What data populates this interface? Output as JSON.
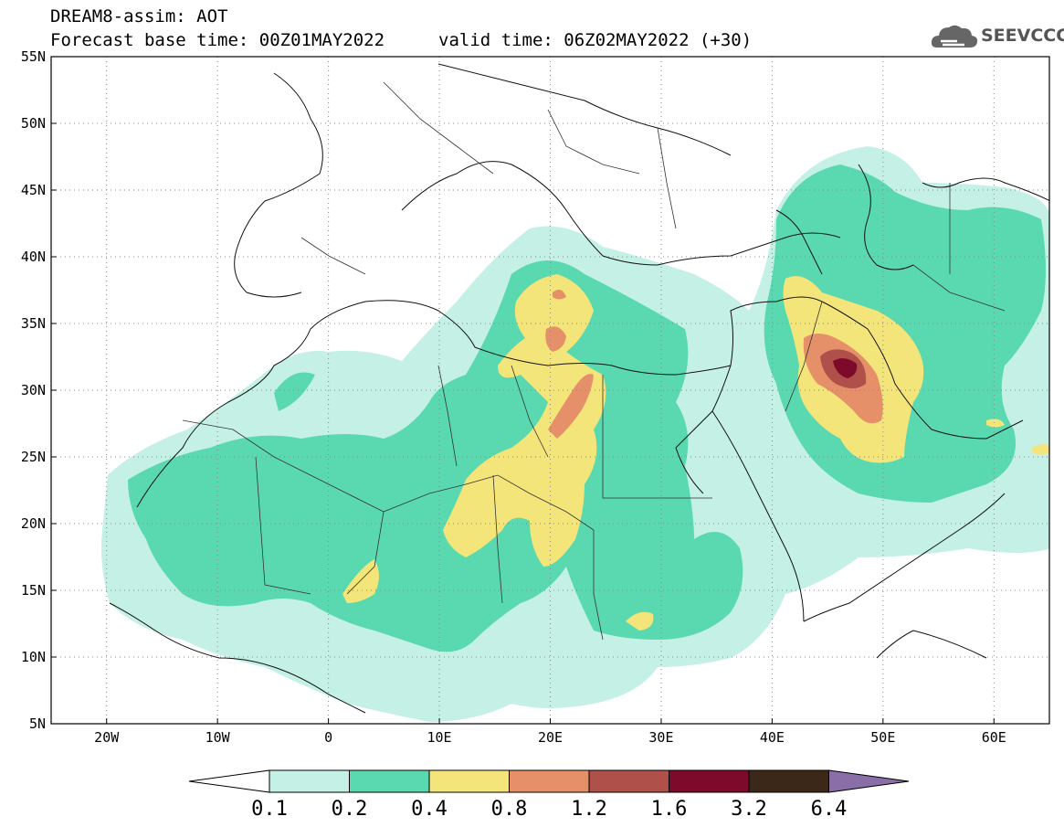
{
  "title": {
    "line1": "DREAM8-assim: AOT",
    "line2": "Forecast base time: 00Z01MAY2022",
    "valid": "valid time: 06Z02MAY2022 (+30)"
  },
  "logo": {
    "text": "SEEVCCC",
    "icon": "cloud-icon"
  },
  "map": {
    "lon_range": [
      -25,
      65
    ],
    "lat_range": [
      5,
      55
    ],
    "x_ticks": [
      {
        "lon": -20,
        "label": "20W"
      },
      {
        "lon": -10,
        "label": "10W"
      },
      {
        "lon": 0,
        "label": "0"
      },
      {
        "lon": 10,
        "label": "10E"
      },
      {
        "lon": 20,
        "label": "20E"
      },
      {
        "lon": 30,
        "label": "30E"
      },
      {
        "lon": 40,
        "label": "40E"
      },
      {
        "lon": 50,
        "label": "50E"
      },
      {
        "lon": 60,
        "label": "60E"
      }
    ],
    "y_ticks": [
      {
        "lat": 55,
        "label": "55N"
      },
      {
        "lat": 50,
        "label": "50N"
      },
      {
        "lat": 45,
        "label": "45N"
      },
      {
        "lat": 40,
        "label": "40N"
      },
      {
        "lat": 35,
        "label": "35N"
      },
      {
        "lat": 30,
        "label": "30N"
      },
      {
        "lat": 25,
        "label": "25N"
      },
      {
        "lat": 20,
        "label": "20N"
      },
      {
        "lat": 15,
        "label": "15N"
      },
      {
        "lat": 10,
        "label": "10N"
      },
      {
        "lat": 5,
        "label": "5N"
      }
    ],
    "grid": "dotted"
  },
  "colorbar": {
    "levels": [
      "0.1",
      "0.2",
      "0.4",
      "0.8",
      "1.2",
      "1.6",
      "3.2",
      "6.4"
    ],
    "colors": [
      "#ffffff",
      "#c4f0e6",
      "#5ad9b0",
      "#f4e57a",
      "#e6906a",
      "#b0504a",
      "#7d0a2a",
      "#3c2818",
      "#8a6ea8"
    ]
  }
}
